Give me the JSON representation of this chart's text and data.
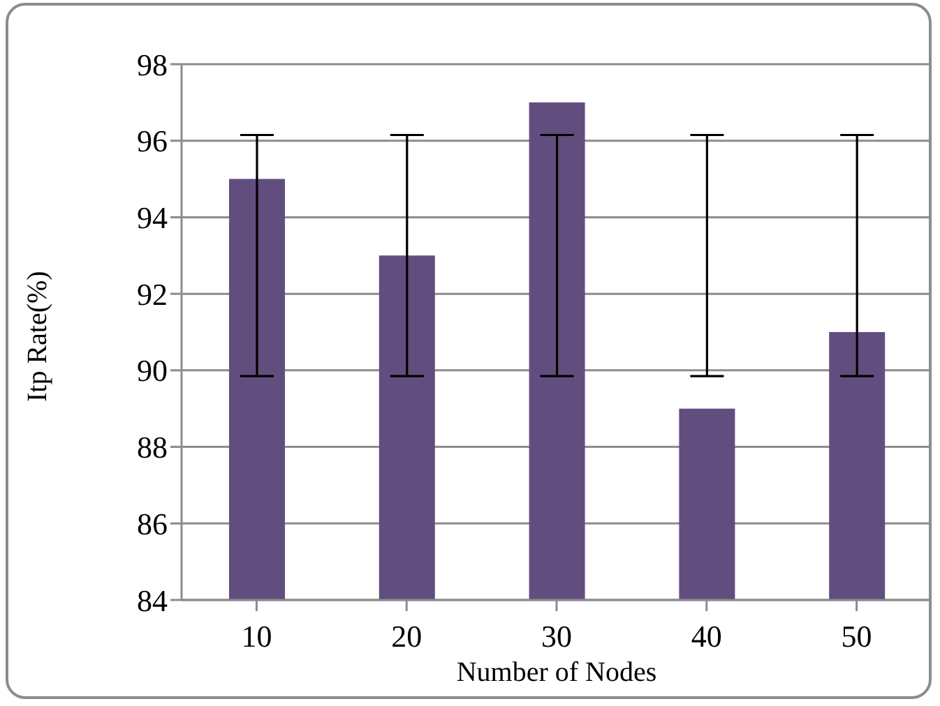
{
  "chart_data": {
    "type": "bar",
    "xlabel": "Number of Nodes",
    "ylabel": "Itp Rate(%)",
    "categories": [
      "10",
      "20",
      "30",
      "40",
      "50"
    ],
    "series": [
      {
        "color": "#624d7f",
        "values": [
          95,
          93,
          97,
          89,
          91
        ],
        "errors": [
          [
            89.85,
            96.15
          ],
          [
            89.85,
            96.15
          ],
          [
            89.85,
            96.15
          ],
          [
            89.85,
            96.15
          ],
          [
            89.85,
            96.15
          ]
        ]
      }
    ],
    "ylim": [
      84,
      98
    ],
    "yticks": [
      84,
      86,
      88,
      90,
      92,
      94,
      96,
      98
    ],
    "grid": "y",
    "legend": false
  }
}
